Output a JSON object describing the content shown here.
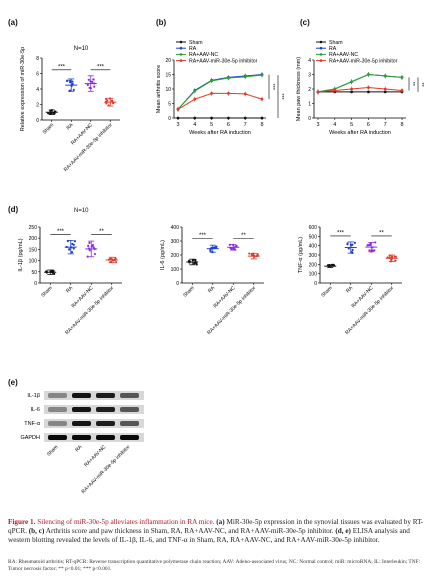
{
  "panels": {
    "a": {
      "letter": "(a)",
      "n": "N=10",
      "ylabel": "Relative expression of miR-30e-5p",
      "yticks": [
        "0",
        "2",
        "4",
        "6",
        "8"
      ],
      "groups": [
        "Sham",
        "RA",
        "RA+AAV-NC",
        "RA+AAV-miR-30e-5p inhibitor"
      ],
      "sig": [
        "***",
        "***"
      ]
    },
    "b": {
      "letter": "(b)",
      "ylabel": "Mean arthritis score",
      "xlabel": "Weeks after RA induction",
      "xticks": [
        "3",
        "4",
        "5",
        "6",
        "7",
        "8"
      ],
      "yticks": [
        "0",
        "5",
        "10",
        "15",
        "20"
      ],
      "legend": [
        "Sham",
        "RA",
        "RA+AAV-NC",
        "RA+AAV-miR-30e-5p inhibitor"
      ],
      "sig": [
        "***",
        "***"
      ]
    },
    "c": {
      "letter": "(c)",
      "ylabel": "Mean paw thickness (mm)",
      "xlabel": "Weeks after RA induction",
      "xticks": [
        "3",
        "4",
        "5",
        "6",
        "7",
        "8"
      ],
      "yticks": [
        "0",
        "1",
        "2",
        "3",
        "4"
      ],
      "legend": [
        "Sham",
        "RA",
        "RA+AAV-NC",
        "RA+AAV-miR-30e-5p inhibitor"
      ],
      "sig": [
        "**",
        "**"
      ]
    },
    "d": {
      "letter": "(d)",
      "n": "N=10",
      "groups": [
        "Sham",
        "RA",
        "RA+AAV-NC",
        "RA+AAV-miR-30e-5p inhibitor"
      ],
      "charts": [
        {
          "ylabel": "IL-1β (pg/mL)",
          "yticks": [
            "0",
            "50",
            "100",
            "150",
            "200",
            "250"
          ],
          "sig": [
            "***",
            "**"
          ]
        },
        {
          "ylabel": "IL-6 (pg/mL)",
          "yticks": [
            "0",
            "100",
            "200",
            "300",
            "400"
          ],
          "sig": [
            "***",
            "**"
          ]
        },
        {
          "ylabel": "TNF-α (pg/mL)",
          "yticks": [
            "0",
            "100",
            "200",
            "300",
            "400",
            "500",
            "600"
          ],
          "sig": [
            "***",
            "**"
          ]
        }
      ]
    },
    "e": {
      "letter": "(e)",
      "bands": [
        "IL-1β",
        "IL-6",
        "TNF-α",
        "GAPDH"
      ],
      "lanes": [
        "Sham",
        "RA",
        "RA+AAV-NC",
        "RA+AAV-miR-30e-5p inhibitor"
      ]
    }
  },
  "chart_data": [
    {
      "type": "scatter",
      "panel": "a",
      "categories": [
        "Sham",
        "RA",
        "RA+AAV-NC",
        "RA+AAV-miR-30e-5p inhibitor"
      ],
      "means": [
        1.0,
        4.5,
        4.7,
        2.3
      ],
      "sd": [
        0.3,
        0.8,
        1.0,
        0.5
      ],
      "ylabel": "Relative expression of miR-30e-5p",
      "ylim": [
        0,
        8
      ],
      "colors": [
        "#111111",
        "#1f3fd1",
        "#8a2be2",
        "#e0392b"
      ]
    },
    {
      "type": "line",
      "panel": "b",
      "x": [
        3,
        4,
        5,
        6,
        7,
        8
      ],
      "series": [
        {
          "name": "Sham",
          "values": [
            0,
            0,
            0,
            0,
            0,
            0
          ],
          "color": "#111111"
        },
        {
          "name": "RA",
          "values": [
            3,
            9.5,
            13,
            14,
            14.5,
            15
          ],
          "color": "#1f3fd1"
        },
        {
          "name": "RA+AAV-NC",
          "values": [
            3,
            9.3,
            12.8,
            13.8,
            14.2,
            14.8
          ],
          "color": "#2ca02c"
        },
        {
          "name": "RA+AAV-miR-30e-5p inhibitor",
          "values": [
            3,
            6.5,
            8.5,
            8.5,
            8.3,
            6.5
          ],
          "color": "#e0392b"
        }
      ],
      "xlabel": "Weeks after RA induction",
      "ylabel": "Mean arthritis score",
      "ylim": [
        0,
        20
      ]
    },
    {
      "type": "line",
      "panel": "c",
      "x": [
        3,
        4,
        5,
        6,
        7,
        8
      ],
      "series": [
        {
          "name": "Sham",
          "values": [
            1.8,
            1.8,
            1.8,
            1.8,
            1.8,
            1.8
          ],
          "color": "#111111"
        },
        {
          "name": "RA",
          "values": [
            1.8,
            2.0,
            2.5,
            3.0,
            2.9,
            2.8
          ],
          "color": "#1f3fd1"
        },
        {
          "name": "RA+AAV-NC",
          "values": [
            1.8,
            2.0,
            2.5,
            3.0,
            2.9,
            2.8
          ],
          "color": "#2ca02c"
        },
        {
          "name": "RA+AAV-miR-30e-5p inhibitor",
          "values": [
            1.8,
            1.9,
            2.0,
            2.1,
            2.0,
            1.9
          ],
          "color": "#e0392b"
        }
      ],
      "xlabel": "Weeks after RA induction",
      "ylabel": "Mean paw thickness (mm)",
      "ylim": [
        0,
        4
      ]
    },
    {
      "type": "scatter",
      "panel": "d-1",
      "categories": [
        "Sham",
        "RA",
        "RA+AAV-NC",
        "RA+AAV-miR-30e-5p inhibitor"
      ],
      "means": [
        48,
        160,
        152,
        103
      ],
      "sd": [
        10,
        30,
        35,
        12
      ],
      "ylabel": "IL-1β (pg/mL)",
      "ylim": [
        0,
        250
      ]
    },
    {
      "type": "scatter",
      "panel": "d-2",
      "categories": [
        "Sham",
        "RA",
        "RA+AAV-NC",
        "RA+AAV-miR-30e-5p inhibitor"
      ],
      "means": [
        150,
        245,
        255,
        192
      ],
      "sd": [
        20,
        25,
        20,
        20
      ],
      "ylabel": "IL-6 (pg/mL)",
      "ylim": [
        0,
        400
      ]
    },
    {
      "type": "scatter",
      "panel": "d-3",
      "categories": [
        "Sham",
        "RA",
        "RA+AAV-NC",
        "RA+AAV-miR-30e-5p inhibitor"
      ],
      "means": [
        180,
        380,
        385,
        265
      ],
      "sd": [
        15,
        60,
        50,
        35
      ],
      "ylabel": "TNF-α (pg/mL)",
      "ylim": [
        0,
        600
      ]
    }
  ],
  "caption": {
    "figure": "Figure 1.",
    "title": "Silencing of miR-30e-5p alleviates inflammation in RA mice.",
    "p1": "(a)",
    "t1": "MiR-30e-5p expression in the synovial tissues was evaluated by RT-qPCR.",
    "p2": "(b, c)",
    "t2": "Arthritis score and paw thickness in Sham, RA, RA+AAV-NC, and RA+AAV-miR-30e-5p inhibitor.",
    "p3": "(d, e)",
    "t3": "ELISA analysis and western blotting revealed the levels of IL-1β, IL-6, and TNF-α in Sham, RA, RA+AAV-NC, and RA+AAV-miR-30e-5p inhibitor.",
    "abbreviations": "RA: Rheumatoid arthritis; RT-qPCR: Reverse transcription quantitative polymerase chain reaction; AAV: Adeno-associated virus; NC: Normal control; miR: microRNA; IL: Interleukin; TNF: Tumor necrosis factor; ** p<0.01; *** p<0.001."
  }
}
